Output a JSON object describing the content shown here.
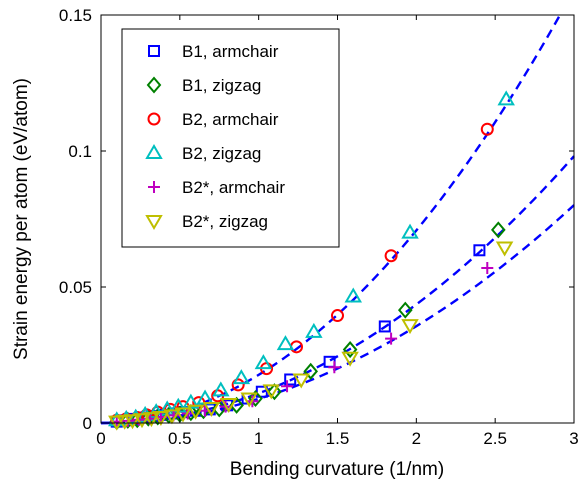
{
  "chart_data": {
    "type": "scatter",
    "xlabel": "Bending curvature (1/nm)",
    "ylabel": "Strain energy per atom (eV/atom)",
    "xlim": [
      0,
      3
    ],
    "ylim": [
      0,
      0.15
    ],
    "xticks": [
      0,
      0.5,
      1,
      1.5,
      2,
      2.5,
      3
    ],
    "xtick_labels": [
      "0",
      "0.5",
      "1",
      "1.5",
      "2",
      "2.5",
      "3"
    ],
    "yticks": [
      0,
      0.05,
      0.1,
      0.15
    ],
    "ytick_labels": [
      "0",
      "0.05",
      "0.1",
      "0.15"
    ],
    "legend_position": "top-left",
    "grid": false,
    "series": [
      {
        "name": "B1, armchair",
        "marker": "square",
        "color": "#0000ff",
        "x": [
          0.1,
          0.16,
          0.21,
          0.27,
          0.33,
          0.39,
          0.46,
          0.52,
          0.6,
          0.69,
          0.8,
          0.93,
          1.02,
          1.2,
          1.45,
          1.8,
          2.4
        ],
        "y": [
          0.0005,
          0.001,
          0.0015,
          0.002,
          0.0025,
          0.003,
          0.0035,
          0.004,
          0.0045,
          0.005,
          0.0065,
          0.009,
          0.0115,
          0.016,
          0.0225,
          0.0355,
          0.0635
        ]
      },
      {
        "name": "B1, zigzag",
        "marker": "diamond",
        "color": "#008000",
        "x": [
          0.1,
          0.17,
          0.23,
          0.3,
          0.36,
          0.43,
          0.5,
          0.57,
          0.65,
          0.75,
          0.86,
          0.98,
          1.1,
          1.33,
          1.58,
          1.93,
          2.52
        ],
        "y": [
          0.0005,
          0.001,
          0.0012,
          0.0018,
          0.0022,
          0.0028,
          0.0032,
          0.0038,
          0.0045,
          0.0052,
          0.0065,
          0.009,
          0.0115,
          0.019,
          0.027,
          0.0415,
          0.071
        ]
      },
      {
        "name": "B2, armchair",
        "marker": "circle",
        "color": "#ff0000",
        "x": [
          0.1,
          0.16,
          0.23,
          0.29,
          0.36,
          0.44,
          0.52,
          0.62,
          0.74,
          0.87,
          1.05,
          1.24,
          1.5,
          1.84,
          2.45
        ],
        "y": [
          0.001,
          0.0015,
          0.002,
          0.003,
          0.004,
          0.005,
          0.006,
          0.0075,
          0.01,
          0.014,
          0.02,
          0.028,
          0.0395,
          0.0615,
          0.108
        ]
      },
      {
        "name": "B2, zigzag",
        "marker": "triangle-up",
        "color": "#00bfbf",
        "x": [
          0.1,
          0.16,
          0.22,
          0.28,
          0.35,
          0.42,
          0.49,
          0.57,
          0.66,
          0.76,
          0.89,
          1.03,
          1.17,
          1.35,
          1.6,
          1.96,
          2.57
        ],
        "y": [
          0.001,
          0.0015,
          0.002,
          0.003,
          0.004,
          0.005,
          0.006,
          0.0075,
          0.009,
          0.012,
          0.0165,
          0.022,
          0.029,
          0.0335,
          0.0465,
          0.07,
          0.119
        ]
      },
      {
        "name": "B2*, armchair",
        "marker": "plus",
        "color": "#bf00bf",
        "x": [
          0.1,
          0.17,
          0.24,
          0.31,
          0.38,
          0.46,
          0.55,
          0.66,
          0.79,
          0.96,
          1.18,
          1.48,
          1.84,
          2.45
        ],
        "y": [
          0.0005,
          0.0008,
          0.0012,
          0.0016,
          0.0022,
          0.0028,
          0.0035,
          0.0045,
          0.006,
          0.008,
          0.0135,
          0.0205,
          0.031,
          0.057
        ]
      },
      {
        "name": "B2*, zigzag",
        "marker": "triangle-down",
        "color": "#bfbf00",
        "x": [
          0.1,
          0.15,
          0.2,
          0.26,
          0.32,
          0.38,
          0.45,
          0.52,
          0.6,
          0.7,
          0.81,
          0.94,
          1.08,
          1.27,
          1.58,
          1.96,
          2.56
        ],
        "y": [
          0.0005,
          0.0008,
          0.001,
          0.0014,
          0.0018,
          0.0022,
          0.0028,
          0.0035,
          0.0045,
          0.0055,
          0.007,
          0.009,
          0.012,
          0.016,
          0.024,
          0.036,
          0.0645
        ]
      }
    ],
    "fit_curves": [
      {
        "style": "dashed",
        "color": "#0000ff",
        "formula": "y = a*x^2",
        "a": 0.0177,
        "x_range": [
          0,
          2.92
        ]
      },
      {
        "style": "dashed",
        "color": "#0000ff",
        "formula": "y = a*x^2",
        "a": 0.0109,
        "x_range": [
          0,
          3
        ]
      },
      {
        "style": "dashed",
        "color": "#0000ff",
        "formula": "y = a*x^2",
        "a": 0.0089,
        "x_range": [
          0,
          3
        ]
      }
    ]
  }
}
